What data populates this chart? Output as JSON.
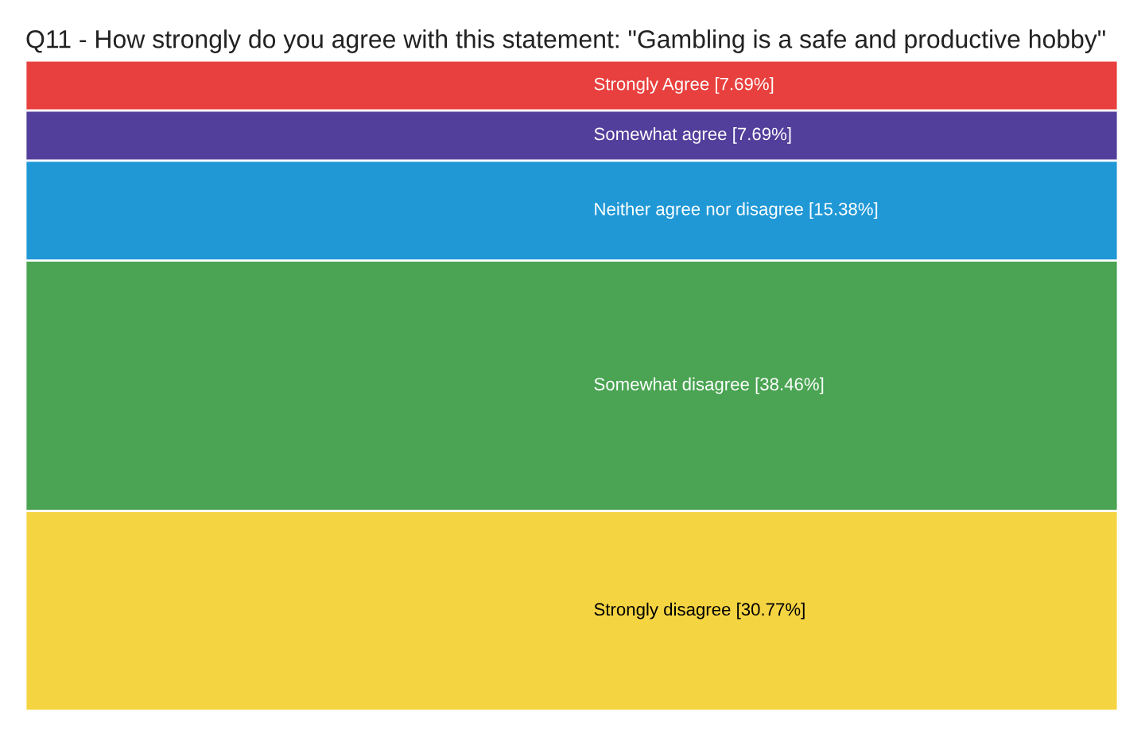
{
  "chart_data": {
    "type": "bar",
    "stacked": true,
    "title": "Q11 - How strongly do you agree with this statement: \"Gambling is a safe and productive hobby\"",
    "categories": [
      null
    ],
    "tick_labels": false,
    "series": [
      {
        "color": "#f5d442",
        "values": [
          30.77
        ],
        "value_labels": [
          "Strongly disagree [30.77%]"
        ]
      },
      {
        "color": "#4aa453",
        "values": [
          38.46
        ],
        "value_labels": [
          "Somewhat disagree [38.46%]"
        ]
      },
      {
        "color": "#2098d6",
        "values": [
          15.38
        ],
        "value_labels": [
          "Neither agree nor disagree [15.38%]"
        ]
      },
      {
        "color": "#523f9b",
        "values": [
          7.69
        ],
        "value_labels": [
          "Somewhat agree [7.69%]"
        ]
      },
      {
        "color": "#e8403e",
        "values": [
          7.69
        ],
        "value_labels": [
          "Strongly Agree [7.69%]"
        ]
      }
    ]
  }
}
